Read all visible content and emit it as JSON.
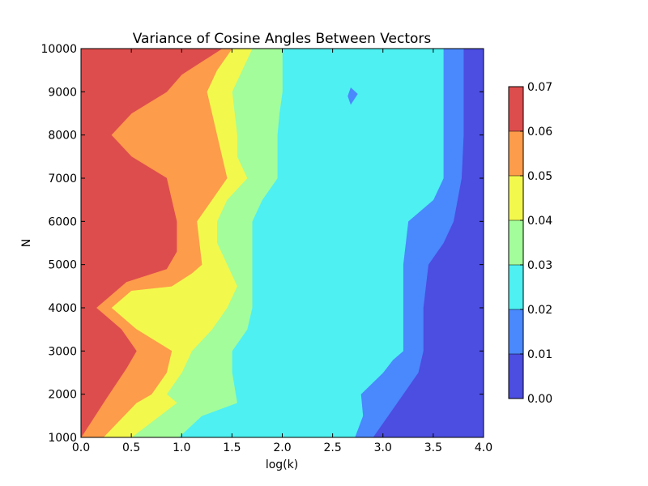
{
  "chart_data": {
    "type": "contour",
    "title": "Variance of Cosine Angles Between Vectors",
    "xlabel": "log(k)",
    "ylabel": "N",
    "xlim": [
      0.0,
      4.0
    ],
    "ylim": [
      1000,
      10000
    ],
    "x_ticks": [
      "0.0",
      "0.5",
      "1.0",
      "1.5",
      "2.0",
      "2.5",
      "3.0",
      "3.5",
      "4.0"
    ],
    "y_ticks": [
      "1000",
      "2000",
      "3000",
      "4000",
      "5000",
      "6000",
      "7000",
      "8000",
      "9000",
      "10000"
    ],
    "colorbar": {
      "levels": [
        0.0,
        0.01,
        0.02,
        0.03,
        0.04,
        0.05,
        0.06,
        0.07
      ],
      "tick_labels": [
        "0.00",
        "0.01",
        "0.02",
        "0.03",
        "0.04",
        "0.05",
        "0.06",
        "0.07"
      ],
      "colors": [
        "#4c4de1",
        "#4a88fd",
        "#4ef0f1",
        "#a3fd9a",
        "#f3f84d",
        "#fd9c4a",
        "#de4d4d"
      ]
    },
    "grid": false,
    "contour_boundaries": [
      {
        "name": "0.06",
        "points": [
          [
            0.0,
            1000
          ],
          [
            0.25,
            1900
          ],
          [
            0.45,
            2600
          ],
          [
            0.55,
            3000
          ],
          [
            0.4,
            3500
          ],
          [
            0.15,
            4000
          ],
          [
            0.45,
            4600
          ],
          [
            0.85,
            4900
          ],
          [
            0.95,
            5300
          ],
          [
            0.95,
            6000
          ],
          [
            0.85,
            7000
          ],
          [
            0.5,
            7500
          ],
          [
            0.3,
            8000
          ],
          [
            0.5,
            8500
          ],
          [
            0.85,
            9000
          ],
          [
            1.0,
            9400
          ],
          [
            1.4,
            10000
          ]
        ]
      },
      {
        "name": "0.05",
        "points": [
          [
            0.22,
            1000
          ],
          [
            0.55,
            1800
          ],
          [
            0.7,
            2000
          ],
          [
            0.85,
            2500
          ],
          [
            0.9,
            3000
          ],
          [
            0.55,
            3500
          ],
          [
            0.3,
            4000
          ],
          [
            0.5,
            4400
          ],
          [
            0.9,
            4500
          ],
          [
            1.1,
            4800
          ],
          [
            1.2,
            5000
          ],
          [
            1.15,
            6000
          ],
          [
            1.3,
            6500
          ],
          [
            1.45,
            7000
          ],
          [
            1.35,
            8000
          ],
          [
            1.3,
            8500
          ],
          [
            1.25,
            9000
          ],
          [
            1.35,
            9500
          ],
          [
            1.5,
            10000
          ]
        ]
      },
      {
        "name": "0.04",
        "points": [
          [
            0.5,
            1000
          ],
          [
            0.95,
            1800
          ],
          [
            0.85,
            2000
          ],
          [
            1.0,
            2500
          ],
          [
            1.1,
            3000
          ],
          [
            1.3,
            3500
          ],
          [
            1.45,
            4000
          ],
          [
            1.55,
            4500
          ],
          [
            1.45,
            5000
          ],
          [
            1.35,
            5500
          ],
          [
            1.35,
            6000
          ],
          [
            1.45,
            6500
          ],
          [
            1.65,
            7000
          ],
          [
            1.55,
            7500
          ],
          [
            1.55,
            8000
          ],
          [
            1.5,
            9000
          ],
          [
            1.6,
            9500
          ],
          [
            1.7,
            10000
          ]
        ]
      },
      {
        "name": "0.03",
        "points": [
          [
            0.97,
            1000
          ],
          [
            1.2,
            1500
          ],
          [
            1.55,
            1800
          ],
          [
            1.5,
            2500
          ],
          [
            1.5,
            3000
          ],
          [
            1.65,
            3500
          ],
          [
            1.7,
            4000
          ],
          [
            1.7,
            4500
          ],
          [
            1.7,
            5000
          ],
          [
            1.7,
            6000
          ],
          [
            1.8,
            6500
          ],
          [
            1.95,
            7000
          ],
          [
            1.95,
            8000
          ],
          [
            1.97,
            8500
          ],
          [
            2.0,
            9000
          ],
          [
            2.0,
            9500
          ],
          [
            2.0,
            10000
          ]
        ]
      },
      {
        "name": "0.02",
        "points": [
          [
            2.72,
            1000
          ],
          [
            2.8,
            1500
          ],
          [
            2.78,
            2000
          ],
          [
            3.0,
            2500
          ],
          [
            3.1,
            2800
          ],
          [
            3.2,
            3000
          ],
          [
            3.2,
            4000
          ],
          [
            3.2,
            5000
          ],
          [
            3.25,
            6000
          ],
          [
            3.5,
            6500
          ],
          [
            3.6,
            7000
          ],
          [
            3.6,
            8000
          ],
          [
            3.6,
            9000
          ],
          [
            3.6,
            9500
          ],
          [
            3.6,
            10000
          ]
        ]
      },
      {
        "name": "0.01",
        "points": [
          [
            2.9,
            1000
          ],
          [
            3.05,
            1500
          ],
          [
            3.2,
            2000
          ],
          [
            3.35,
            2500
          ],
          [
            3.4,
            3000
          ],
          [
            3.4,
            4000
          ],
          [
            3.45,
            5000
          ],
          [
            3.6,
            5500
          ],
          [
            3.7,
            6000
          ],
          [
            3.78,
            7000
          ],
          [
            3.8,
            8000
          ],
          [
            3.8,
            9000
          ],
          [
            3.8,
            9500
          ],
          [
            3.8,
            10000
          ]
        ]
      }
    ],
    "island": {
      "value": "0.01-0.02",
      "points": [
        [
          2.65,
          8900
        ],
        [
          2.68,
          9100
        ],
        [
          2.75,
          8950
        ],
        [
          2.68,
          8700
        ]
      ]
    }
  }
}
